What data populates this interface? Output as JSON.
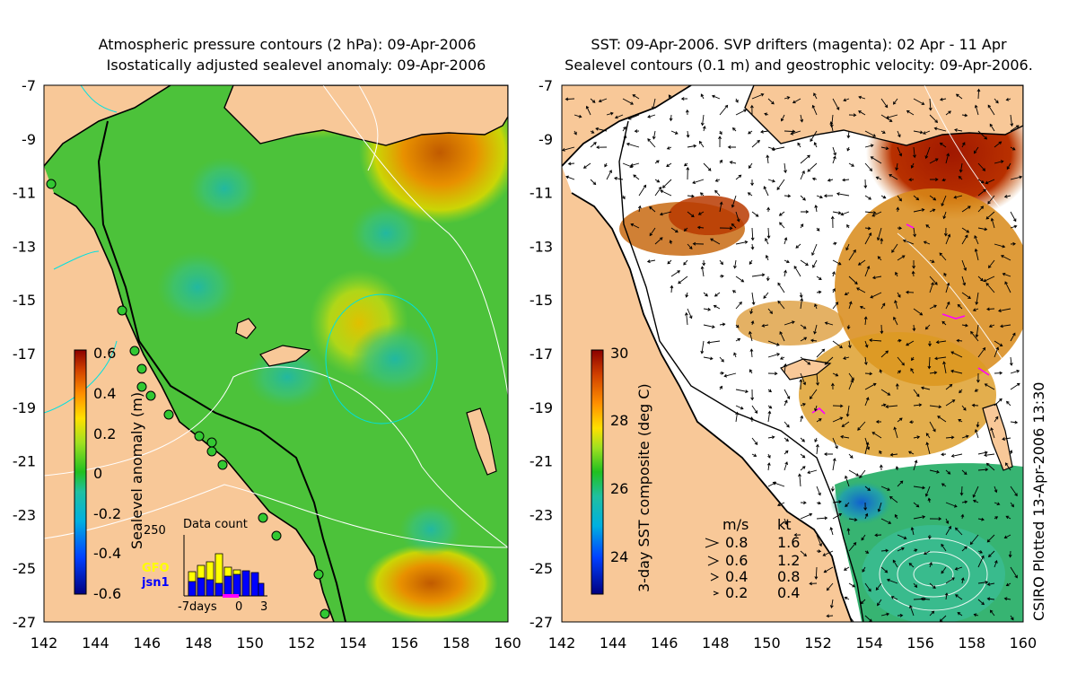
{
  "left_panel": {
    "title_line1": "Atmospheric pressure contours (2 hPa): 09-Apr-2006",
    "title_line2": "Isostatically adjusted sealevel anomaly: 09-Apr-2006",
    "colorbar": {
      "label": "Sealevel anomaly (m)",
      "ticks": [
        "0.6",
        "0.4",
        "0.2",
        "0",
        "-0.2",
        "-0.4",
        "-0.6"
      ]
    },
    "inset": {
      "title": "Data count",
      "ymax_label": "250",
      "series": [
        "GFO",
        "jsn1"
      ],
      "xticks": [
        "-7days",
        "0",
        "3"
      ],
      "colors": {
        "GFO": "#ffff00",
        "jsn1": "#0000ff"
      }
    }
  },
  "right_panel": {
    "title_line1": "SST: 09-Apr-2006. SVP drifters (magenta): 02 Apr - 11 Apr",
    "title_line2": "Sealevel contours (0.1 m) and geostrophic velocity: 09-Apr-2006.",
    "colorbar": {
      "label": "3-day SST composite (deg C)",
      "ticks": [
        "30",
        "28",
        "26",
        "24"
      ]
    },
    "velocity_legend": {
      "header_ms": "m/s",
      "header_kt": "kt",
      "rows": [
        {
          "ms": "0.8",
          "kt": "1.6"
        },
        {
          "ms": "0.6",
          "kt": "1.2"
        },
        {
          "ms": "0.4",
          "kt": "0.8"
        },
        {
          "ms": "0.2",
          "kt": "0.4"
        }
      ]
    }
  },
  "axes": {
    "x_ticks": [
      "142",
      "144",
      "146",
      "148",
      "150",
      "152",
      "154",
      "156",
      "158",
      "160"
    ],
    "y_ticks": [
      "-7",
      "-9",
      "-11",
      "-13",
      "-15",
      "-17",
      "-19",
      "-21",
      "-23",
      "-25",
      "-27"
    ]
  },
  "credit": "CSIRO Plotted 13-Apr-2006 13:30",
  "colors": {
    "land": "#f8c898",
    "ocean_mid": "#33cc33",
    "warm": "#cc4400",
    "cool": "#22aaaa",
    "sst_hot": "#aa1100"
  }
}
